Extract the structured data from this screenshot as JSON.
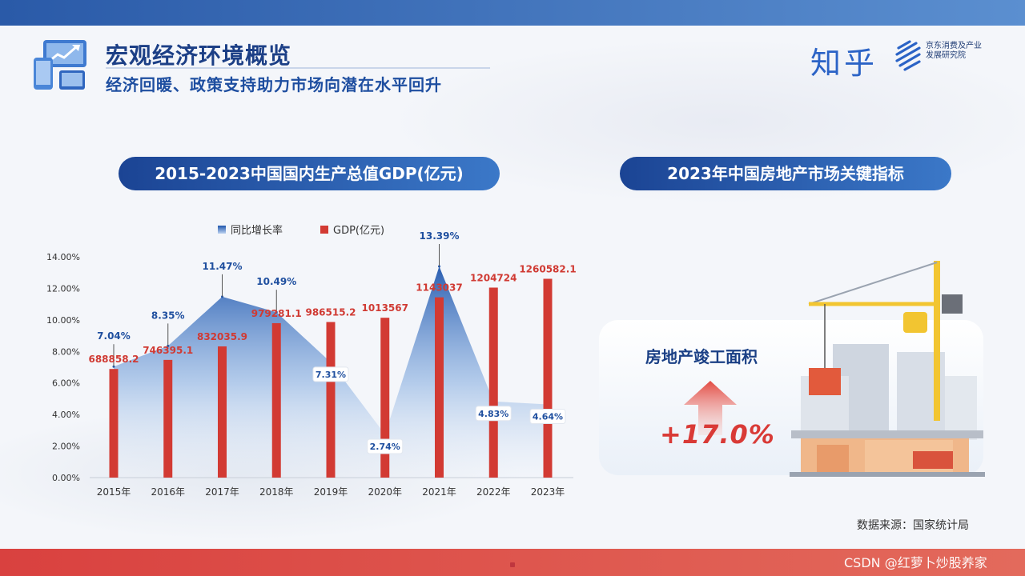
{
  "header": {
    "title": "宏观经济环境概览",
    "subtitle": "经济回暖、政策支持助力市场向潜在水平回升",
    "logo_zhihu": "知乎",
    "logo_jd": "京东消费及产业发展研究院"
  },
  "left_panel": {
    "title": "2015-2023中国国内生产总值GDP(亿元)"
  },
  "right_panel": {
    "title": "2023年中国房地产市场关键指标",
    "kpi_label": "房地产竣工面积",
    "kpi_value": "+17.0%"
  },
  "footer": {
    "source": "数据来源：国家统计局",
    "watermark": "CSDN @红萝卜炒股养家"
  },
  "colors": {
    "primary": "#1c3f86",
    "accent_red": "#d93a36",
    "bar_red": "#d23a33",
    "area_blue": "#2b62b8"
  },
  "chart_data": {
    "type": "bar",
    "categories": [
      "2015年",
      "2016年",
      "2017年",
      "2018年",
      "2019年",
      "2020年",
      "2021年",
      "2022年",
      "2023年"
    ],
    "series": [
      {
        "name": "GDP(亿元)",
        "type": "bar",
        "values": [
          688858.2,
          746395.1,
          832035.9,
          979281.1,
          986515.2,
          1013567,
          1143037,
          1204724,
          1260582.1
        ],
        "labels": [
          "688858.2",
          "746395.1",
          "832035.9",
          "979281.1",
          "986515.2",
          "1013567",
          "1143037",
          "1204724",
          "1260582.1"
        ]
      },
      {
        "name": "同比增长率",
        "type": "area",
        "values": [
          7.04,
          8.35,
          11.47,
          10.49,
          7.31,
          2.74,
          13.39,
          4.83,
          4.64
        ],
        "labels": [
          "7.04%",
          "8.35%",
          "11.47%",
          "10.49%",
          "7.31%",
          "2.74%",
          "13.39%",
          "4.83%",
          "4.64%"
        ]
      }
    ],
    "yaxis": {
      "ticks": [
        0,
        2,
        4,
        6,
        8,
        10,
        12,
        14
      ],
      "tick_labels": [
        "0.00%",
        "2.00%",
        "4.00%",
        "6.00%",
        "8.00%",
        "10.00%",
        "12.00%",
        "14.00%"
      ],
      "ylim": [
        0,
        14
      ]
    },
    "bar_scale_ylim": [
      0,
      1400000
    ],
    "legend": [
      "同比增长率",
      "GDP(亿元)"
    ],
    "legend_position": "top-center"
  }
}
